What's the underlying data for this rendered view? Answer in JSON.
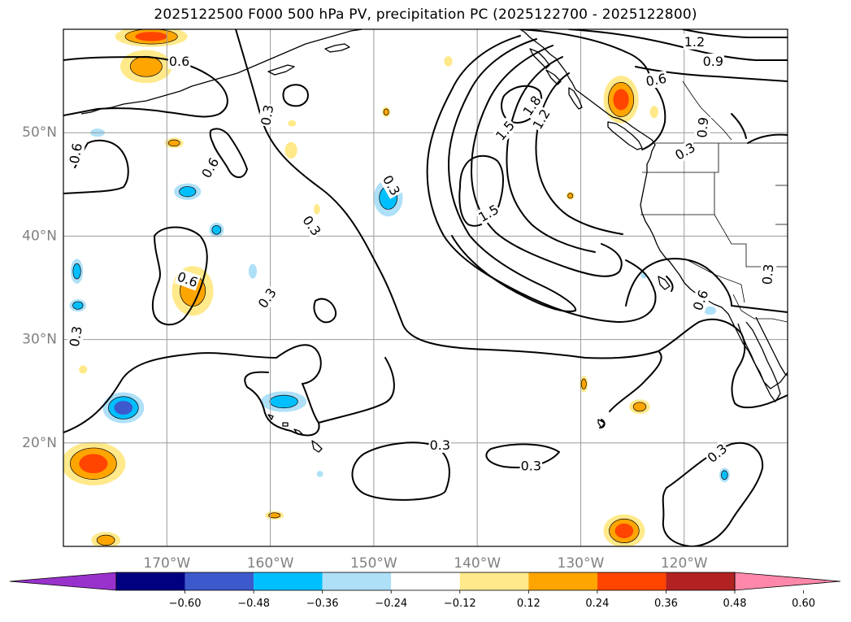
{
  "title": "2025122500 F000 500 hPa PV, precipitation PC (2025122700 - 2025122800)",
  "chart_data": {
    "type": "map-contour",
    "title": "2025122500 F000 500 hPa PV, precipitation PC (2025122700 - 2025122800)",
    "xlabel": "",
    "ylabel": "",
    "lon_range": [
      -180,
      -110
    ],
    "lat_range": [
      10,
      60
    ],
    "grid": true,
    "x_ticks": [
      {
        "lon": -170,
        "label": "170°W"
      },
      {
        "lon": -160,
        "label": "160°W"
      },
      {
        "lon": -150,
        "label": "150°W"
      },
      {
        "lon": -140,
        "label": "140°W"
      },
      {
        "lon": -130,
        "label": "130°W"
      },
      {
        "lon": -120,
        "label": "120°W"
      }
    ],
    "y_ticks": [
      {
        "lat": 20,
        "label": "20°N"
      },
      {
        "lat": 30,
        "label": "30°N"
      },
      {
        "lat": 40,
        "label": "40°N"
      },
      {
        "lat": 50,
        "label": "50°N"
      }
    ],
    "pv_contour_levels": [
      0.3,
      0.6,
      0.9,
      1.2,
      1.5,
      1.8
    ],
    "contour_labels": [
      {
        "text": "0.6",
        "lon": -168.8,
        "lat": 56.9,
        "rot": 0
      },
      {
        "text": "1.2",
        "lon": -119.0,
        "lat": 58.8,
        "rot": 0
      },
      {
        "text": "0.9",
        "lon": -117.2,
        "lat": 56.9,
        "rot": 0
      },
      {
        "text": "0.6",
        "lon": -122.7,
        "lat": 55.1,
        "rot": -10
      },
      {
        "text": "0.3",
        "lon": -160.3,
        "lat": 51.7,
        "rot": -80
      },
      {
        "text": "1.8",
        "lon": -134.7,
        "lat": 52.6,
        "rot": -55
      },
      {
        "text": "1.5",
        "lon": -137.3,
        "lat": 50.2,
        "rot": -50
      },
      {
        "text": "1.2",
        "lon": -133.8,
        "lat": 51.3,
        "rot": -60
      },
      {
        "text": "0.6",
        "lon": -178.8,
        "lat": 48.0,
        "rot": -80
      },
      {
        "text": "0.6",
        "lon": -165.8,
        "lat": 46.6,
        "rot": -60
      },
      {
        "text": "0.3",
        "lon": -148.3,
        "lat": 44.9,
        "rot": 60
      },
      {
        "text": "0.9",
        "lon": -118.2,
        "lat": 50.5,
        "rot": -85
      },
      {
        "text": "0.3",
        "lon": -119.9,
        "lat": 48.2,
        "rot": -30
      },
      {
        "text": "1.5",
        "lon": -138.9,
        "lat": 42.2,
        "rot": -30
      },
      {
        "text": "0.3",
        "lon": -156.0,
        "lat": 41.0,
        "rot": 55
      },
      {
        "text": "0.6",
        "lon": -168.0,
        "lat": 35.8,
        "rot": 20
      },
      {
        "text": "0.3",
        "lon": -160.3,
        "lat": 34.0,
        "rot": -55
      },
      {
        "text": "0.3",
        "lon": -111.9,
        "lat": 36.3,
        "rot": -85
      },
      {
        "text": "0.6",
        "lon": -118.4,
        "lat": 33.8,
        "rot": -70
      },
      {
        "text": "0.3",
        "lon": -178.8,
        "lat": 30.3,
        "rot": -80
      },
      {
        "text": "0.3",
        "lon": -143.6,
        "lat": 19.8,
        "rot": 0
      },
      {
        "text": "0.3",
        "lon": -134.8,
        "lat": 17.8,
        "rot": 0
      },
      {
        "text": "0.3",
        "lon": -116.8,
        "lat": 19.0,
        "rot": -40
      }
    ],
    "colorbar": {
      "colors": [
        "#9932cc",
        "#000080",
        "#3c5acc",
        "#00bfff",
        "#aee0f8",
        "#ffffff",
        "#ffe98a",
        "#ffa500",
        "#ff4500",
        "#b22222",
        "#ff88aa"
      ],
      "ticks": [
        "−0.60",
        "−0.48",
        "−0.36",
        "−0.24",
        "−0.12",
        "0.12",
        "0.24",
        "0.36",
        "0.48",
        "0.60"
      ],
      "tick_values": [
        -0.6,
        -0.48,
        -0.36,
        -0.24,
        -0.12,
        0.12,
        0.24,
        0.36,
        0.48,
        0.6
      ],
      "extend": "both"
    },
    "precip_blobs": [
      {
        "lon": -171.5,
        "lat": 59.3,
        "rx": 3.5,
        "ry": 1.0,
        "value": 0.42
      },
      {
        "lon": -172.0,
        "lat": 56.4,
        "rx": 2.5,
        "ry": 1.6,
        "value": 0.28
      },
      {
        "lon": -176.7,
        "lat": 50.0,
        "rx": 0.7,
        "ry": 0.4,
        "value": -0.16
      },
      {
        "lon": -169.3,
        "lat": 49.0,
        "rx": 0.9,
        "ry": 0.5,
        "value": 0.3
      },
      {
        "lon": -158.0,
        "lat": 48.3,
        "rx": 0.6,
        "ry": 0.8,
        "value": 0.2
      },
      {
        "lon": -157.9,
        "lat": 50.9,
        "rx": 0.4,
        "ry": 0.3,
        "value": 0.18
      },
      {
        "lon": -168.0,
        "lat": 44.3,
        "rx": 1.3,
        "ry": 0.8,
        "value": -0.27
      },
      {
        "lon": -165.2,
        "lat": 40.6,
        "rx": 0.7,
        "ry": 0.7,
        "value": -0.3
      },
      {
        "lon": -178.7,
        "lat": 36.6,
        "rx": 0.6,
        "ry": 1.2,
        "value": -0.27
      },
      {
        "lon": -178.6,
        "lat": 33.3,
        "rx": 0.8,
        "ry": 0.6,
        "value": -0.24
      },
      {
        "lon": -167.5,
        "lat": 34.7,
        "rx": 2.0,
        "ry": 2.4,
        "value": 0.3
      },
      {
        "lon": -161.7,
        "lat": 36.6,
        "rx": 0.4,
        "ry": 0.7,
        "value": -0.2
      },
      {
        "lon": -155.5,
        "lat": 42.6,
        "rx": 0.3,
        "ry": 0.5,
        "value": 0.2
      },
      {
        "lon": -148.6,
        "lat": 43.7,
        "rx": 1.4,
        "ry": 1.8,
        "value": -0.3
      },
      {
        "lon": -148.8,
        "lat": 52.0,
        "rx": 0.4,
        "ry": 0.5,
        "value": 0.3
      },
      {
        "lon": -142.8,
        "lat": 56.9,
        "rx": 0.4,
        "ry": 0.5,
        "value": 0.2
      },
      {
        "lon": -174.2,
        "lat": 23.4,
        "rx": 2.0,
        "ry": 1.5,
        "value": -0.45
      },
      {
        "lon": -158.7,
        "lat": 24.0,
        "rx": 2.2,
        "ry": 1.0,
        "value": -0.28
      },
      {
        "lon": -177.1,
        "lat": 18.0,
        "rx": 3.1,
        "ry": 2.1,
        "value": 0.42
      },
      {
        "lon": -159.6,
        "lat": 13.0,
        "rx": 0.9,
        "ry": 0.4,
        "value": 0.3
      },
      {
        "lon": -175.9,
        "lat": 10.6,
        "rx": 1.4,
        "ry": 0.8,
        "value": 0.3
      },
      {
        "lon": -155.2,
        "lat": 17.0,
        "rx": 0.3,
        "ry": 0.3,
        "value": -0.15
      },
      {
        "lon": -178.1,
        "lat": 27.1,
        "rx": 0.4,
        "ry": 0.4,
        "value": 0.2
      },
      {
        "lon": -131.0,
        "lat": 43.9,
        "rx": 0.4,
        "ry": 0.4,
        "value": 0.24
      },
      {
        "lon": -126.1,
        "lat": 53.2,
        "rx": 1.7,
        "ry": 2.3,
        "value": 0.45
      },
      {
        "lon": -122.9,
        "lat": 52.0,
        "rx": 0.4,
        "ry": 0.6,
        "value": 0.2
      },
      {
        "lon": -129.7,
        "lat": 25.7,
        "rx": 0.4,
        "ry": 0.8,
        "value": 0.28
      },
      {
        "lon": -124.3,
        "lat": 23.5,
        "rx": 1.0,
        "ry": 0.7,
        "value": 0.3
      },
      {
        "lon": -125.8,
        "lat": 11.5,
        "rx": 2.0,
        "ry": 1.6,
        "value": 0.4
      },
      {
        "lon": -116.1,
        "lat": 16.9,
        "rx": 0.5,
        "ry": 0.7,
        "value": -0.25
      },
      {
        "lon": -117.5,
        "lat": 32.8,
        "rx": 0.6,
        "ry": 0.4,
        "value": -0.2
      },
      {
        "lon": -123.9,
        "lat": 36.2,
        "rx": 0.3,
        "ry": 0.3,
        "value": -0.13
      }
    ]
  }
}
